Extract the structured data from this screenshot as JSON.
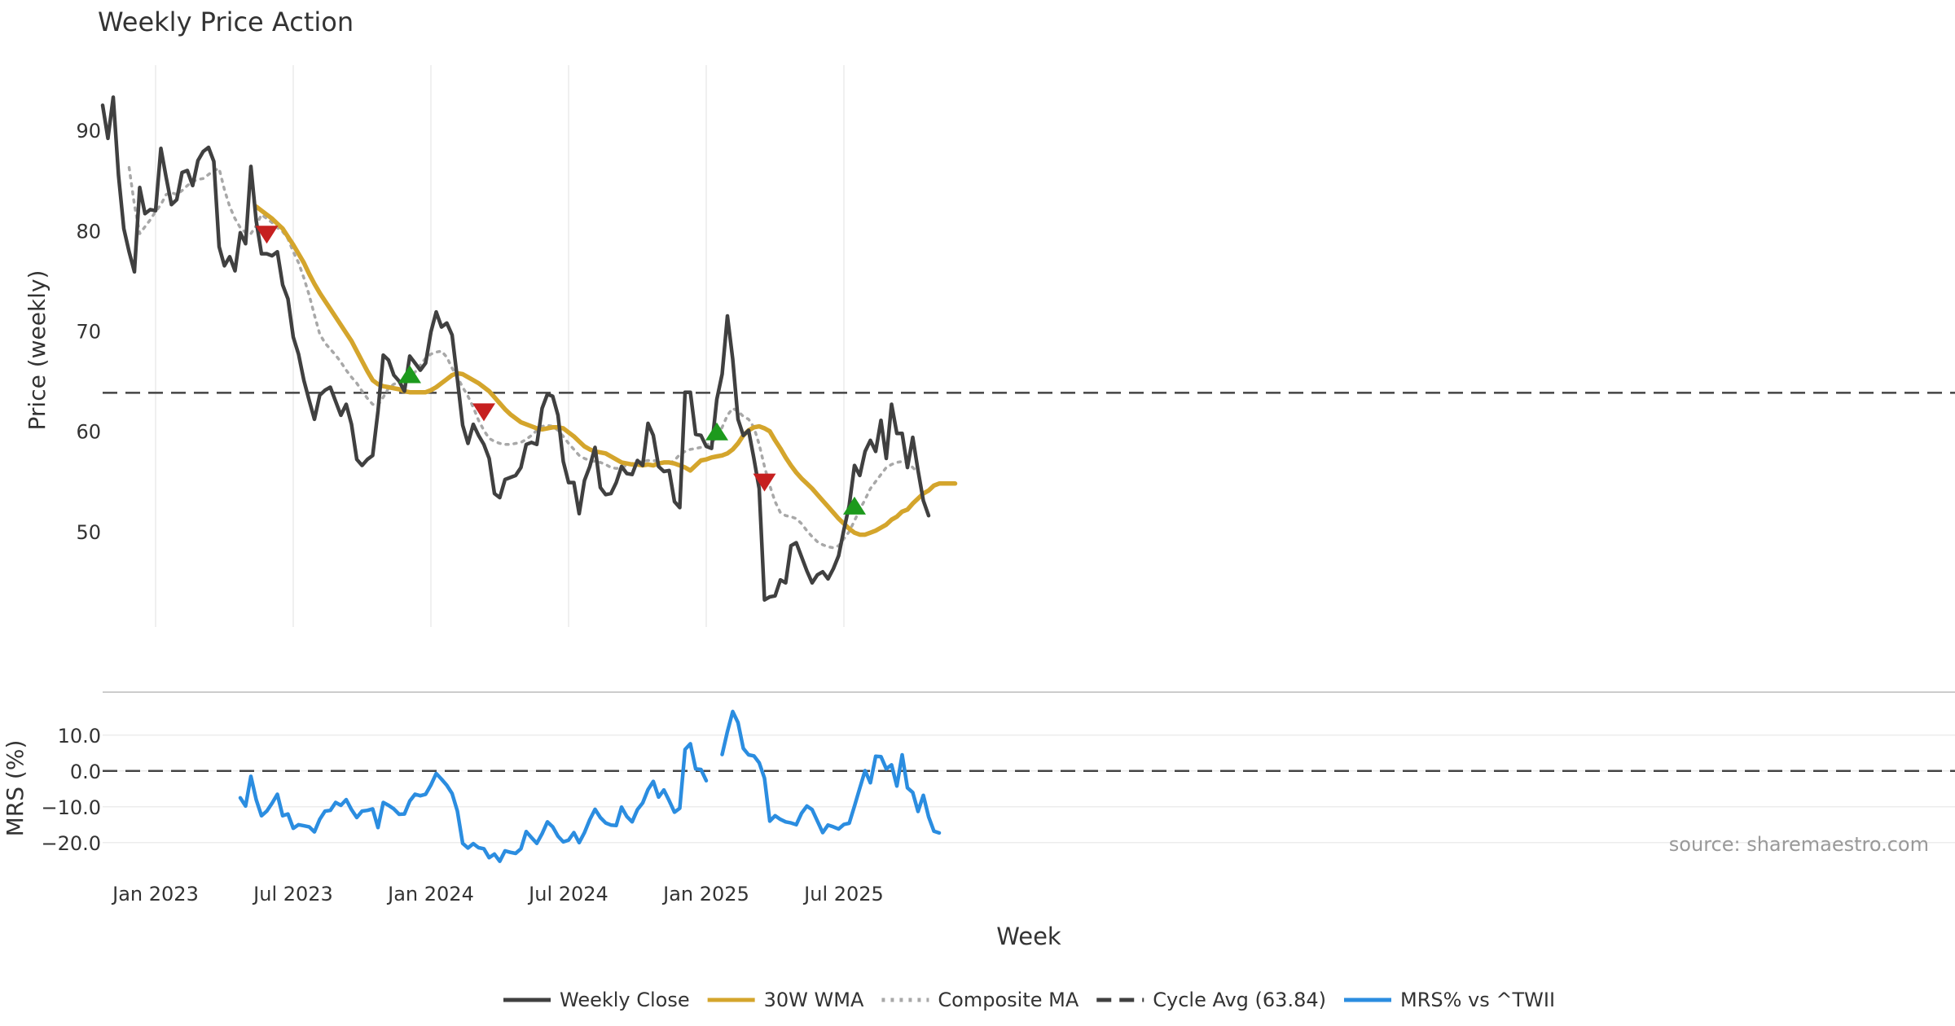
{
  "chart_data": {
    "type": "line",
    "title": "Weekly Price Action",
    "xlabel": "Week",
    "source": "source: sharemaestro.com",
    "x_ticks": [
      "Jan 2023",
      "Jul 2023",
      "Jan 2024",
      "Jul 2024",
      "Jan 2025",
      "Jul 2025"
    ],
    "price_panel": {
      "ylabel": "Price (weekly)",
      "ylim": [
        40.5,
        96.5
      ],
      "y_ticks": [
        "50",
        "60",
        "70",
        "80",
        "90"
      ],
      "cycle_avg": 63.84,
      "series": [
        {
          "name": "Weekly Close",
          "color": "#404040",
          "style": "solid",
          "start_week": 0,
          "values": [
            92.5,
            89.2,
            93.3,
            85.5,
            80.2,
            77.9,
            75.9,
            84.3,
            81.7,
            82.1,
            82.0,
            88.2,
            85.3,
            82.6,
            83.1,
            85.8,
            86.0,
            84.5,
            87.0,
            87.9,
            88.3,
            86.9,
            78.4,
            76.5,
            77.4,
            76.0,
            79.8,
            78.7,
            86.4,
            81.0,
            77.7,
            77.7,
            77.5,
            77.9,
            74.6,
            73.2,
            69.4,
            67.7,
            65.1,
            63.1,
            61.2,
            63.6,
            64.1,
            64.4,
            63.0,
            61.6,
            62.7,
            60.7,
            57.2,
            56.6,
            57.2,
            57.6,
            62.0,
            67.6,
            67.1,
            65.6,
            65.0,
            64.0,
            67.5,
            66.8,
            66.1,
            66.8,
            69.9,
            71.9,
            70.4,
            70.8,
            69.6,
            65.2,
            60.6,
            58.8,
            60.7,
            59.6,
            58.7,
            57.3,
            53.8,
            53.4,
            55.2,
            55.4,
            55.6,
            56.4,
            58.7,
            58.9,
            58.7,
            62.3,
            63.7,
            63.5,
            61.6,
            57.0,
            54.9,
            54.9,
            51.8,
            55.1,
            56.5,
            58.4,
            54.4,
            53.7,
            53.8,
            54.9,
            56.5,
            55.8,
            55.7,
            57.1,
            56.6,
            60.8,
            59.6,
            56.5,
            56.0,
            56.1,
            53.0,
            52.4,
            63.9,
            63.9,
            59.7,
            59.6,
            58.5,
            58.3,
            63.2,
            65.7,
            71.5,
            67.2,
            61.2,
            59.6,
            60.1,
            57.3,
            54.3,
            43.2,
            43.5,
            43.6,
            45.2,
            44.9,
            48.6,
            48.9,
            47.5,
            46.1,
            44.9,
            45.7,
            46.0,
            45.3,
            46.3,
            47.6,
            50.2,
            52.6,
            56.6,
            55.6,
            58.0,
            59.1,
            58.0,
            61.1,
            57.3,
            62.7,
            59.8,
            59.8,
            56.4,
            59.4,
            56.1,
            53.1,
            51.6
          ]
        },
        {
          "name": "30W WMA",
          "color": "#d4a52c",
          "style": "solid",
          "start_week": 29,
          "values": [
            82.4,
            82.0,
            81.6,
            81.2,
            80.7,
            80.2,
            79.4,
            78.6,
            77.7,
            76.8,
            75.7,
            74.7,
            73.8,
            73.0,
            72.2,
            71.4,
            70.6,
            69.8,
            69.0,
            68.0,
            67.0,
            66.0,
            65.1,
            64.7,
            64.5,
            64.4,
            64.3,
            64.2,
            64.0,
            63.9,
            63.9,
            63.9,
            63.9,
            64.1,
            64.4,
            64.8,
            65.2,
            65.6,
            65.8,
            65.7,
            65.4,
            65.1,
            64.8,
            64.4,
            64.0,
            63.4,
            62.8,
            62.2,
            61.7,
            61.3,
            60.9,
            60.7,
            60.5,
            60.3,
            60.2,
            60.3,
            60.4,
            60.4,
            60.3,
            59.9,
            59.5,
            59.0,
            58.5,
            58.2,
            58.0,
            57.9,
            57.8,
            57.5,
            57.2,
            56.9,
            56.8,
            56.7,
            56.7,
            56.6,
            56.7,
            56.6,
            56.8,
            56.9,
            56.9,
            56.8,
            56.6,
            56.4,
            56.1,
            56.6,
            57.1,
            57.2,
            57.4,
            57.5,
            57.6,
            57.8,
            58.2,
            58.8,
            59.6,
            60.1,
            60.4,
            60.5,
            60.3,
            60.0,
            59.1,
            58.3,
            57.4,
            56.6,
            55.9,
            55.3,
            54.8,
            54.3,
            53.7,
            53.1,
            52.5,
            51.9,
            51.3,
            50.8,
            50.3,
            49.9,
            49.7,
            49.7,
            49.9,
            50.1,
            50.4,
            50.7,
            51.2,
            51.5,
            52.0,
            52.2,
            52.8,
            53.3,
            53.8,
            54.1,
            54.6,
            54.8,
            54.8,
            54.8,
            54.8
          ]
        },
        {
          "name": "Composite MA",
          "color": "#a8a8a8",
          "style": "dotted",
          "start_week": 5,
          "values": [
            86.3,
            82.6,
            79.7,
            80.4,
            81.1,
            81.9,
            82.6,
            83.6,
            83.8,
            83.6,
            84.0,
            84.5,
            84.9,
            85.1,
            85.2,
            85.6,
            86.0,
            86.2,
            84.1,
            82.4,
            81.2,
            80.3,
            79.8,
            79.7,
            80.5,
            81.6,
            81.2,
            80.8,
            80.3,
            79.9,
            79.2,
            77.9,
            76.8,
            75.3,
            73.6,
            71.6,
            69.7,
            68.8,
            68.2,
            67.6,
            66.9,
            66.1,
            65.4,
            64.8,
            64.0,
            63.3,
            62.7,
            62.6,
            63.4,
            64.3,
            64.7,
            64.9,
            65.2,
            65.5,
            65.9,
            66.6,
            67.3,
            67.7,
            67.9,
            68.0,
            67.4,
            66.3,
            65.4,
            64.4,
            63.5,
            62.4,
            61.1,
            60.1,
            59.3,
            59.0,
            58.8,
            58.7,
            58.7,
            58.8,
            58.9,
            59.2,
            59.6,
            60.1,
            60.5,
            60.6,
            60.5,
            60.1,
            59.5,
            58.8,
            58.2,
            57.6,
            57.3,
            57.1,
            57.0,
            56.9,
            56.7,
            56.4,
            56.3,
            56.4,
            56.6,
            56.8,
            56.9,
            57.0,
            57.1,
            57.1,
            57.0,
            56.9,
            56.8,
            57.1,
            57.7,
            58.0,
            58.2,
            58.3,
            58.4,
            58.6,
            58.9,
            59.4,
            60.4,
            61.6,
            62.3,
            62.0,
            61.5,
            61.2,
            60.4,
            58.7,
            56.5,
            54.6,
            53.0,
            51.9,
            51.6,
            51.5,
            51.3,
            50.8,
            50.1,
            49.5,
            49.0,
            48.7,
            48.5,
            48.4,
            48.6,
            49.3,
            50.0,
            51.1,
            52.2,
            53.2,
            54.3,
            55.0,
            55.7,
            56.4,
            56.7,
            56.9,
            57.0,
            56.9,
            56.4,
            55.9
          ]
        }
      ],
      "signals": [
        {
          "type": "sell",
          "week": 31,
          "value": 79.6,
          "color": "#c62020"
        },
        {
          "type": "buy",
          "week": 58,
          "value": 65.7,
          "color": "#1d9a1d"
        },
        {
          "type": "sell",
          "week": 72,
          "value": 61.9,
          "color": "#c62020"
        },
        {
          "type": "buy",
          "week": 116,
          "value": 60.0,
          "color": "#1d9a1d"
        },
        {
          "type": "sell",
          "week": 125,
          "value": 54.9,
          "color": "#c62020"
        },
        {
          "type": "buy",
          "week": 142,
          "value": 52.6,
          "color": "#1d9a1d"
        }
      ]
    },
    "mrs_panel": {
      "ylabel": "MRS (%)",
      "ylim": [
        -28,
        22
      ],
      "y_ticks": [
        "10.0",
        "0.0",
        "−10.0",
        "−20.0"
      ],
      "zero_line": 0,
      "series": [
        {
          "name": "MRS% vs ^TWII",
          "color": "#2b8de0",
          "start_week": 26,
          "values": [
            -7.5,
            -9.8,
            -1.5,
            -8.0,
            -12.5,
            -11.2,
            -9.0,
            -6.5,
            -12.5,
            -12.0,
            -16.0,
            -15.0,
            -15.3,
            -15.6,
            -17.0,
            -13.5,
            -11.2,
            -11.0,
            -8.8,
            -9.6,
            -8.0,
            -10.8,
            -13.0,
            -11.2,
            -11.0,
            -10.6,
            -15.8,
            -8.8,
            -9.6,
            -10.6,
            -12.1,
            -12.0,
            -8.4,
            -6.5,
            -6.9,
            -6.5,
            -3.9,
            -0.7,
            -2.3,
            -4.0,
            -6.3,
            -11.2,
            -20.2,
            -21.5,
            -20.3,
            -21.4,
            -21.7,
            -24.2,
            -23.2,
            -25.2,
            -22.3,
            -22.7,
            -23.0,
            -21.7,
            -16.9,
            -18.6,
            -20.2,
            -17.5,
            -14.2,
            -15.6,
            -18.2,
            -19.8,
            -19.3,
            -17.2,
            -20.0,
            -17.2,
            -13.6,
            -10.7,
            -13.0,
            -14.5,
            -15.1,
            -15.2,
            -10.1,
            -12.7,
            -14.2,
            -10.8,
            -8.9,
            -5.2,
            -2.9,
            -7.3,
            -5.3,
            -8.3,
            -11.5,
            -10.4,
            6.0,
            7.6,
            0.6,
            0.4,
            -2.7,
            null,
            null,
            4.6,
            11.0,
            16.6,
            13.5,
            6.3,
            4.5,
            4.2,
            2.3,
            -2.0,
            -14.0,
            -12.5,
            -13.5,
            -14.2,
            -14.5,
            -15.0,
            -11.8,
            -9.8,
            -10.8,
            -14.0,
            -17.2,
            -15.1,
            -15.6,
            -16.2,
            -14.9,
            -14.6,
            -9.8,
            -4.8,
            0.1,
            -3.3,
            4.1,
            4.0,
            0.6,
            1.7,
            -4.2,
            4.5,
            -4.7,
            -6.0,
            -11.3,
            -6.8,
            -12.8,
            -16.8,
            -17.3
          ]
        }
      ]
    },
    "legend": [
      {
        "label": "Weekly Close",
        "color": "#404040",
        "style": "solid"
      },
      {
        "label": "30W WMA",
        "color": "#d4a52c",
        "style": "solid"
      },
      {
        "label": "Composite MA",
        "color": "#a8a8a8",
        "style": "dotted"
      },
      {
        "label": "Cycle Avg (63.84)",
        "color": "#404040",
        "style": "dashed"
      },
      {
        "label": "MRS% vs ^TWII",
        "color": "#2b8de0",
        "style": "solid"
      }
    ],
    "legend_position": "bottom-center"
  }
}
